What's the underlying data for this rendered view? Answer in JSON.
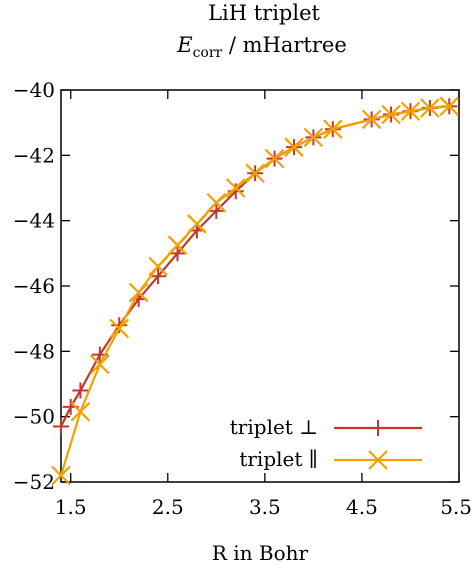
{
  "chart_data": {
    "type": "line",
    "title_line1": "LiH triplet",
    "title_line2_main": "E",
    "title_line2_sub": "corr",
    "title_line2_rest": " / mHartree",
    "xlabel": "R in Bohr",
    "ylabel": "",
    "xlim": [
      1.4,
      5.5
    ],
    "ylim": [
      -52,
      -40
    ],
    "xticks": [
      1.5,
      2.5,
      3.5,
      4.5,
      5.5
    ],
    "xtick_labels": [
      "1.5",
      "2.5",
      "3.5",
      "4.5",
      "5.5"
    ],
    "yticks": [
      -40,
      -42,
      -44,
      -46,
      -48,
      -50,
      -52
    ],
    "ytick_labels": [
      "−40",
      "−42",
      "−44",
      "−46",
      "−48",
      "−50",
      "−52"
    ],
    "legend_position": "bottom-right",
    "series": [
      {
        "name": "triplet ⊥",
        "color": "#c0392b",
        "marker": "plus",
        "x": [
          1.4,
          1.5,
          1.6,
          1.8,
          2.0,
          2.2,
          2.4,
          2.6,
          2.8,
          3.0,
          3.2,
          3.4,
          3.6,
          3.8,
          4.0,
          4.2,
          4.6,
          4.8,
          5.0,
          5.2,
          5.4
        ],
        "y": [
          -50.3,
          -49.7,
          -49.2,
          -48.1,
          -47.2,
          -46.4,
          -45.7,
          -45.0,
          -44.3,
          -43.7,
          -43.1,
          -42.55,
          -42.1,
          -41.75,
          -41.45,
          -41.2,
          -40.9,
          -40.75,
          -40.65,
          -40.55,
          -40.5
        ]
      },
      {
        "name": "triplet ∥",
        "color": "#f5a000",
        "marker": "x",
        "x": [
          1.4,
          1.6,
          1.8,
          2.0,
          2.2,
          2.4,
          2.6,
          2.8,
          3.0,
          3.2,
          3.4,
          3.6,
          3.8,
          4.0,
          4.2,
          4.6,
          4.8,
          5.0,
          5.2,
          5.4
        ],
        "y": [
          -51.8,
          -49.85,
          -48.4,
          -47.3,
          -46.2,
          -45.4,
          -44.75,
          -44.1,
          -43.45,
          -43.0,
          -42.55,
          -42.1,
          -41.75,
          -41.45,
          -41.2,
          -40.9,
          -40.75,
          -40.65,
          -40.55,
          -40.5
        ]
      }
    ]
  }
}
